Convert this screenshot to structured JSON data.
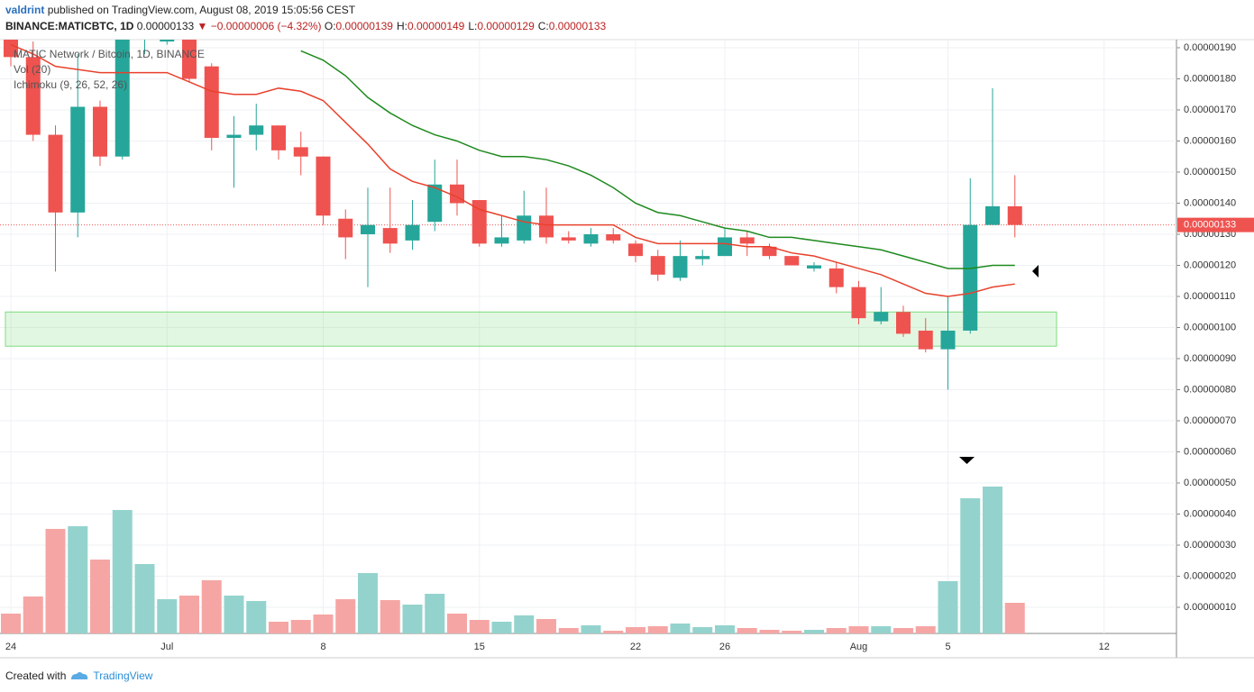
{
  "header": {
    "author": "valdrint",
    "published": "published on TradingView.com, August 08, 2019 15:05:56 CEST",
    "symbol": "BINANCE:MATICBTC, 1D",
    "last": "0.00000133",
    "change": "▼ −0.00000006 (−4.32%)",
    "ohlc": [
      [
        "O:",
        "0.00000139"
      ],
      [
        "H:",
        "0.00000149"
      ],
      [
        "L:",
        "0.00000129"
      ],
      [
        "C:",
        "0.00000133"
      ]
    ]
  },
  "footer": {
    "created": "Created with",
    "brand": "TradingView"
  },
  "chart_data": {
    "type": "candlestick",
    "title": "MATIC Network / Bitcoin, 1D, BINANCE",
    "categories": [
      "24",
      null,
      null,
      null,
      null,
      null,
      null,
      "Jul",
      null,
      null,
      null,
      null,
      null,
      null,
      "8",
      null,
      null,
      null,
      null,
      null,
      null,
      "15",
      null,
      null,
      null,
      null,
      null,
      null,
      "22",
      null,
      null,
      null,
      "26",
      null,
      null,
      null,
      null,
      null,
      "Aug",
      null,
      null,
      null,
      "5",
      null,
      null,
      null,
      null,
      null,
      null,
      "12"
    ],
    "open": [
      1.93e-06,
      1.87e-06,
      1.62e-06,
      1.37e-06,
      1.71e-06,
      1.55e-06,
      1.94e-06,
      1.92e-06,
      1.97e-06,
      1.84e-06,
      1.61e-06,
      1.62e-06,
      1.65e-06,
      1.58e-06,
      1.55e-06,
      1.35e-06,
      1.3e-06,
      1.32e-06,
      1.28e-06,
      1.34e-06,
      1.46e-06,
      1.41e-06,
      1.27e-06,
      1.28e-06,
      1.36e-06,
      1.29e-06,
      1.27e-06,
      1.3e-06,
      1.27e-06,
      1.23e-06,
      1.16e-06,
      1.22e-06,
      1.23e-06,
      1.29e-06,
      1.26e-06,
      1.23e-06,
      1.19e-06,
      1.19e-06,
      1.13e-06,
      1.02e-06,
      1.05e-06,
      9.9e-07,
      9.3e-07,
      9.9e-07,
      1.33e-06,
      1.39e-06,
      null,
      null,
      null,
      null
    ],
    "high": [
      1.95e-06,
      1.92e-06,
      1.65e-06,
      1.88e-06,
      1.73e-06,
      1.96e-06,
      2.03e-06,
      2e-06,
      1.99e-06,
      1.85e-06,
      1.68e-06,
      1.72e-06,
      1.65e-06,
      1.63e-06,
      1.55e-06,
      1.38e-06,
      1.45e-06,
      1.45e-06,
      1.41e-06,
      1.54e-06,
      1.54e-06,
      1.41e-06,
      1.36e-06,
      1.44e-06,
      1.45e-06,
      1.31e-06,
      1.32e-06,
      1.32e-06,
      1.28e-06,
      1.25e-06,
      1.28e-06,
      1.25e-06,
      1.32e-06,
      1.31e-06,
      1.27e-06,
      1.23e-06,
      1.21e-06,
      1.21e-06,
      1.15e-06,
      1.13e-06,
      1.07e-06,
      1.03e-06,
      1.1e-06,
      1.48e-06,
      1.77e-06,
      1.49e-06,
      null,
      null,
      null,
      null
    ],
    "low": [
      1.84e-06,
      1.6e-06,
      1.18e-06,
      1.29e-06,
      1.52e-06,
      1.54e-06,
      1.88e-06,
      1.91e-06,
      1.79e-06,
      1.57e-06,
      1.45e-06,
      1.57e-06,
      1.54e-06,
      1.49e-06,
      1.33e-06,
      1.22e-06,
      1.13e-06,
      1.24e-06,
      1.25e-06,
      1.31e-06,
      1.36e-06,
      1.26e-06,
      1.26e-06,
      1.27e-06,
      1.27e-06,
      1.27e-06,
      1.26e-06,
      1.27e-06,
      1.21e-06,
      1.15e-06,
      1.15e-06,
      1.2e-06,
      1.23e-06,
      1.23e-06,
      1.22e-06,
      1.2e-06,
      1.18e-06,
      1.11e-06,
      1.01e-06,
      1.01e-06,
      9.7e-07,
      9.2e-07,
      8e-07,
      9.8e-07,
      1.33e-06,
      1.29e-06,
      null,
      null,
      null,
      null
    ],
    "close": [
      1.87e-06,
      1.62e-06,
      1.37e-06,
      1.71e-06,
      1.55e-06,
      1.94e-06,
      2e-06,
      1.97e-06,
      1.8e-06,
      1.61e-06,
      1.62e-06,
      1.65e-06,
      1.57e-06,
      1.55e-06,
      1.36e-06,
      1.29e-06,
      1.33e-06,
      1.27e-06,
      1.33e-06,
      1.46e-06,
      1.4e-06,
      1.27e-06,
      1.29e-06,
      1.36e-06,
      1.29e-06,
      1.28e-06,
      1.3e-06,
      1.28e-06,
      1.23e-06,
      1.17e-06,
      1.23e-06,
      1.23e-06,
      1.29e-06,
      1.27e-06,
      1.23e-06,
      1.2e-06,
      1.2e-06,
      1.13e-06,
      1.03e-06,
      1.05e-06,
      9.8e-07,
      9.3e-07,
      9.9e-07,
      1.33e-06,
      1.39e-06,
      1.33e-06,
      null,
      null,
      null,
      null
    ],
    "up_color": "#26a69a",
    "down_color": "#ef5350",
    "volume": {
      "label": "Vol (20)",
      "ylim": [
        0,
        220
      ],
      "up_color": "#94d3cd",
      "down_color": "#f5a6a4",
      "values": [
        22,
        41,
        116,
        119,
        82,
        137,
        77,
        38,
        42,
        59,
        42,
        36,
        13,
        15,
        21,
        38,
        67,
        37,
        32,
        44,
        22,
        15,
        13,
        20,
        16,
        6,
        9,
        3,
        7,
        8,
        11,
        7,
        9,
        6,
        4,
        3,
        4,
        6,
        8,
        8,
        6,
        8,
        58,
        150,
        163,
        34,
        null,
        null,
        null,
        null
      ]
    },
    "indicator": {
      "label": "Ichimoku (9, 26, 52, 26)",
      "lines": [
        {
          "color": "#e8412c",
          "values": [
            1.91e-06,
            1.88e-06,
            1.84e-06,
            1.83e-06,
            1.82e-06,
            1.82e-06,
            1.82e-06,
            1.82e-06,
            1.79e-06,
            1.76e-06,
            1.75e-06,
            1.75e-06,
            1.77e-06,
            1.76e-06,
            1.73e-06,
            1.66e-06,
            1.59e-06,
            1.51e-06,
            1.47e-06,
            1.45e-06,
            1.42e-06,
            1.38e-06,
            1.36e-06,
            1.34e-06,
            1.33e-06,
            1.33e-06,
            1.33e-06,
            1.33e-06,
            1.29e-06,
            1.27e-06,
            1.27e-06,
            1.27e-06,
            1.27e-06,
            1.26e-06,
            1.26e-06,
            1.24e-06,
            1.23e-06,
            1.21e-06,
            1.19e-06,
            1.17e-06,
            1.14e-06,
            1.11e-06,
            1.1e-06,
            1.11e-06,
            1.13e-06,
            1.14e-06,
            null,
            null,
            null,
            null
          ]
        },
        {
          "color": "#1e8a1e",
          "values": [
            null,
            null,
            null,
            null,
            null,
            null,
            null,
            null,
            null,
            null,
            null,
            null,
            null,
            1.89e-06,
            1.86e-06,
            1.81e-06,
            1.74e-06,
            1.69e-06,
            1.65e-06,
            1.62e-06,
            1.6e-06,
            1.57e-06,
            1.55e-06,
            1.55e-06,
            1.54e-06,
            1.52e-06,
            1.49e-06,
            1.45e-06,
            1.4e-06,
            1.37e-06,
            1.36e-06,
            1.34e-06,
            1.32e-06,
            1.31e-06,
            1.29e-06,
            1.29e-06,
            1.28e-06,
            1.27e-06,
            1.26e-06,
            1.25e-06,
            1.23e-06,
            1.21e-06,
            1.19e-06,
            1.19e-06,
            1.2e-06,
            1.2e-06,
            null,
            null,
            null,
            null
          ]
        }
      ]
    },
    "zone": {
      "from": 9.4e-07,
      "to": 1.05e-06,
      "color": "#7ddc7d"
    },
    "last_price": {
      "value": 1.33e-06,
      "label": "0.00000133",
      "color": "#ef5350"
    },
    "ylim": [
      1.6e-08,
      1.926e-06
    ],
    "yticks": [
      {
        "value": 1.9e-06,
        "label": "0.00000190"
      },
      {
        "value": 1.8e-06,
        "label": "0.00000180"
      },
      {
        "value": 1.7e-06,
        "label": "0.00000170"
      },
      {
        "value": 1.6e-06,
        "label": "0.00000160"
      },
      {
        "value": 1.5e-06,
        "label": "0.00000150"
      },
      {
        "value": 1.4e-06,
        "label": "0.00000140"
      },
      {
        "value": 1.3e-06,
        "label": "0.00000130"
      },
      {
        "value": 1.2e-06,
        "label": "0.00000120"
      },
      {
        "value": 1.1e-06,
        "label": "0.00000110"
      },
      {
        "value": 1e-06,
        "label": "0.00000100"
      },
      {
        "value": 9e-07,
        "label": "0.00000090"
      },
      {
        "value": 8e-07,
        "label": "0.00000080"
      },
      {
        "value": 7e-07,
        "label": "0.00000070"
      },
      {
        "value": 6e-07,
        "label": "0.00000060"
      },
      {
        "value": 5e-07,
        "label": "0.00000050"
      },
      {
        "value": 4e-07,
        "label": "0.00000040"
      },
      {
        "value": 3e-07,
        "label": "0.00000030"
      },
      {
        "value": 2e-07,
        "label": "0.00000020"
      },
      {
        "value": 1e-07,
        "label": "0.00000010"
      }
    ],
    "grid": true
  }
}
